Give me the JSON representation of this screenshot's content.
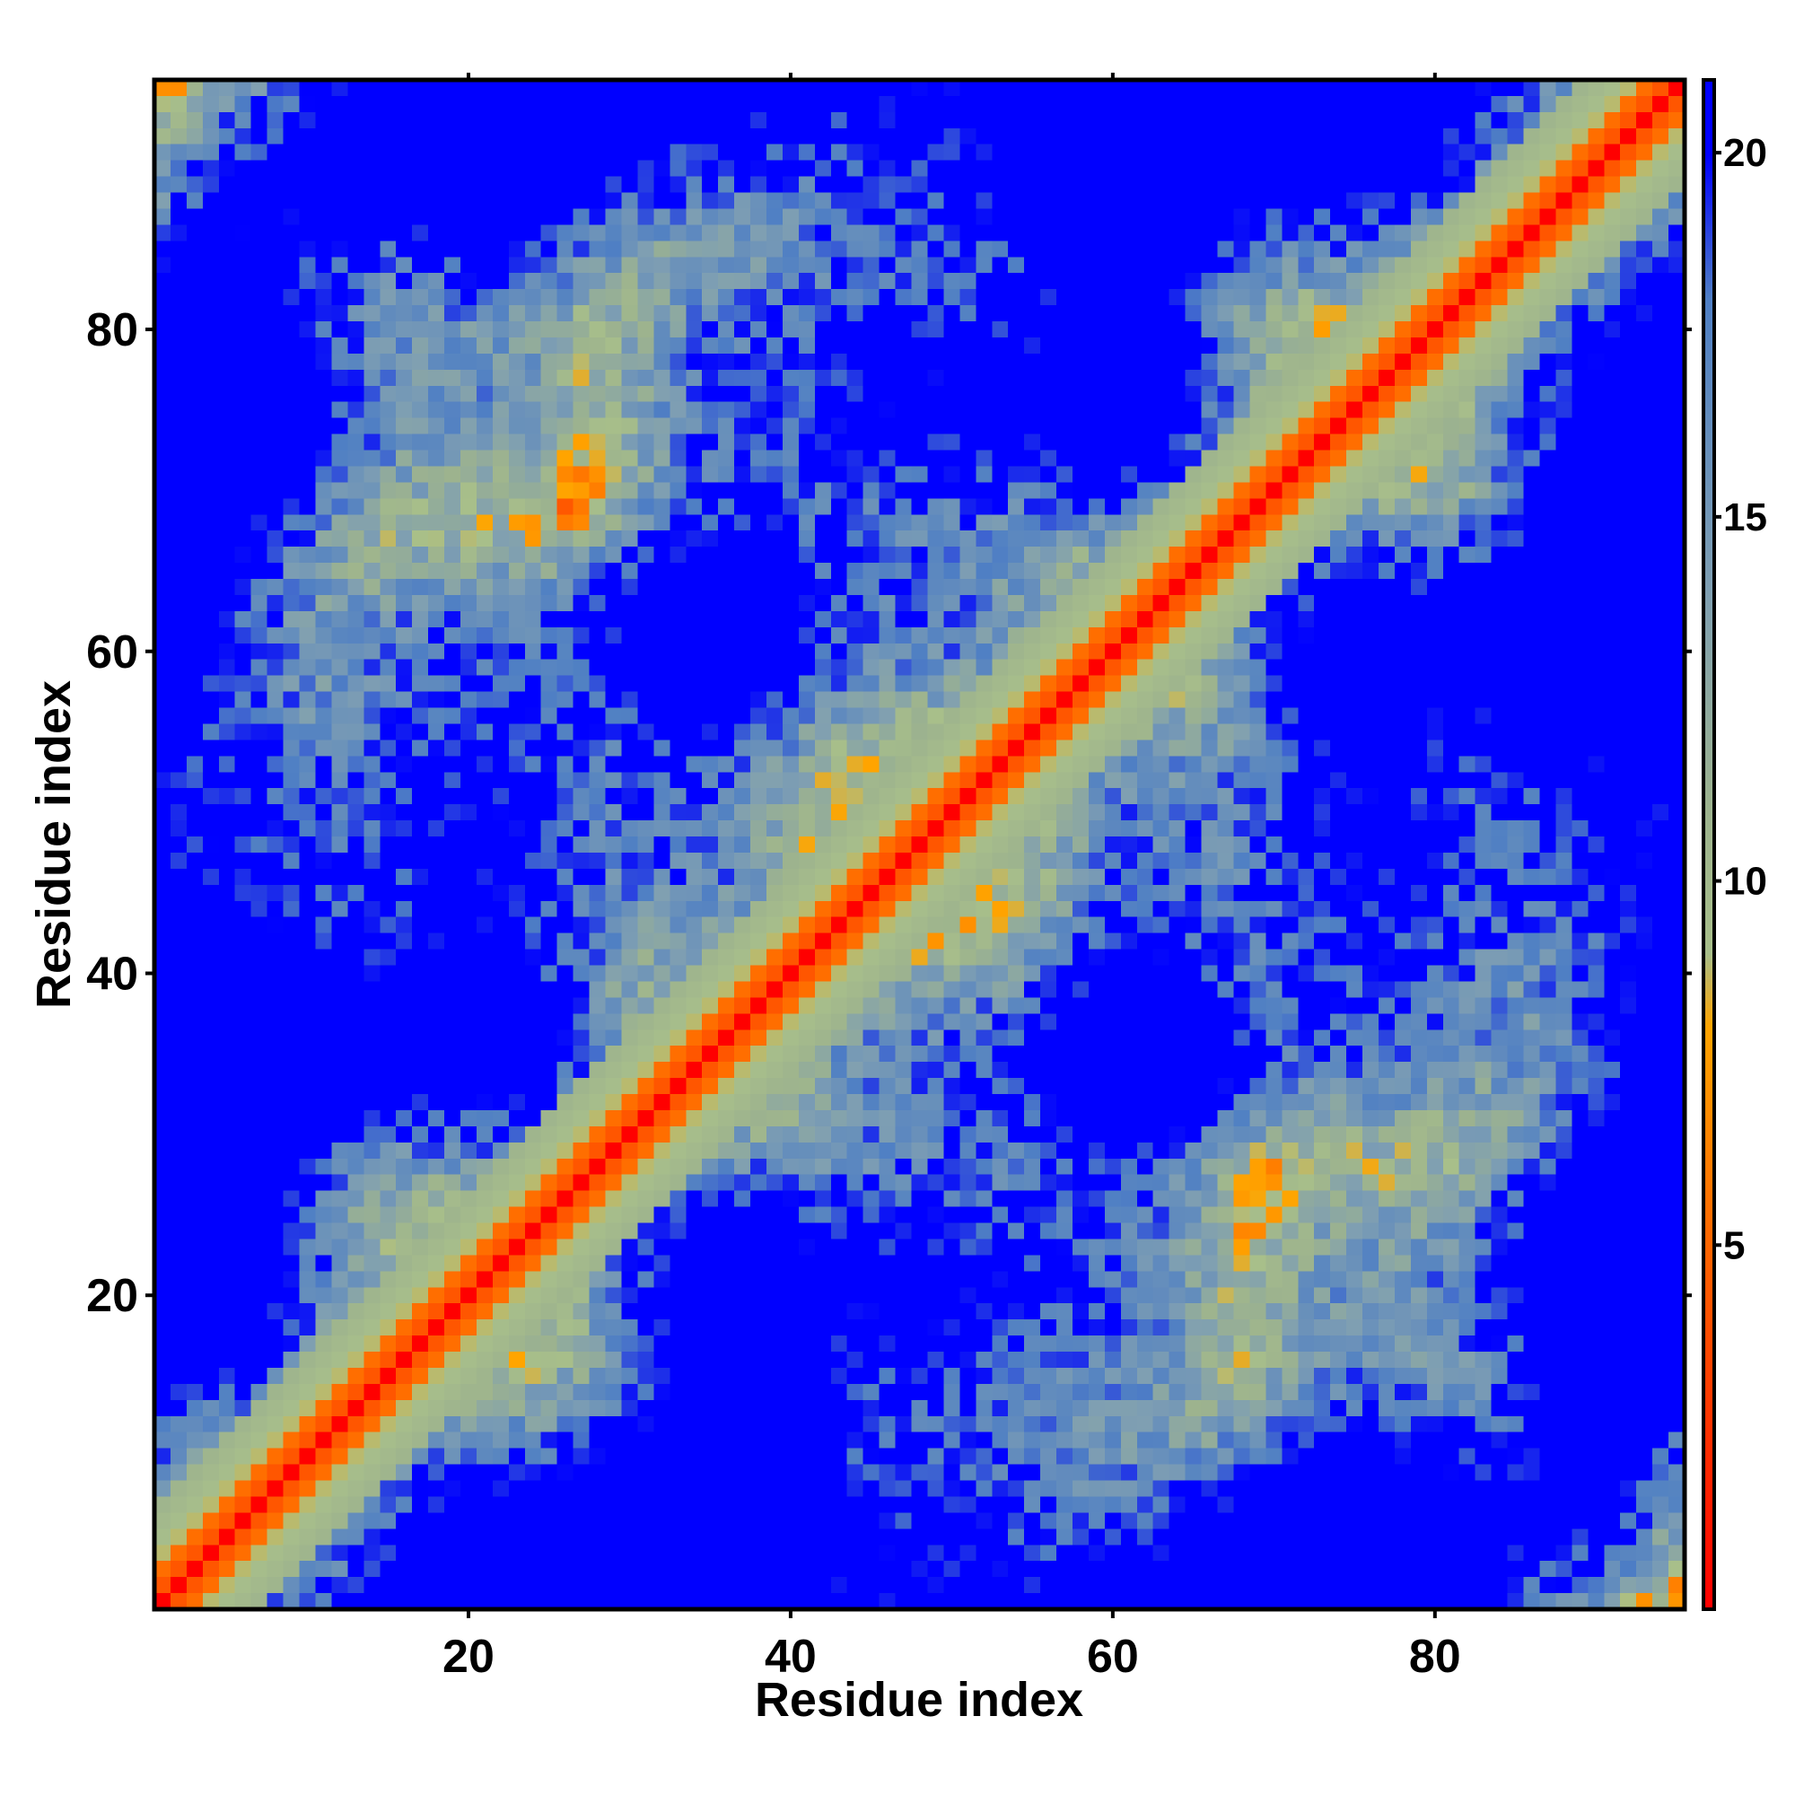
{
  "chart_data": {
    "type": "heatmap",
    "xlabel": "Residue index",
    "ylabel": "Residue index",
    "n_residues": 95,
    "x_range": [
      1,
      95
    ],
    "y_range": [
      1,
      95
    ],
    "x_ticks": [
      "20",
      "40",
      "60",
      "80"
    ],
    "x_tick_values": [
      20,
      40,
      60,
      80
    ],
    "y_ticks": [
      "20",
      "40",
      "60",
      "80"
    ],
    "y_tick_values": [
      20,
      40,
      60,
      80
    ],
    "colorbar": {
      "ticks": [
        "5",
        "10",
        "15",
        "20"
      ],
      "tick_values": [
        5,
        10,
        15,
        20
      ],
      "range": [
        0,
        21
      ]
    },
    "colorscale": [
      {
        "value": 0,
        "color": "#ff0000"
      },
      {
        "value": 5,
        "color": "#ff6600"
      },
      {
        "value": 8,
        "color": "#ffa500"
      },
      {
        "value": 9,
        "color": "#a8bf8a"
      },
      {
        "value": 11,
        "color": "#9db38e"
      },
      {
        "value": 14,
        "color": "#7f9fb2"
      },
      {
        "value": 18,
        "color": "#4f7fc4"
      },
      {
        "value": 20,
        "color": "#0000ff"
      }
    ],
    "grid": false,
    "description_of_values": "Pairwise residue distance map; diagonal near 0 (red), distant pairs saturate at ~21 (blue)."
  }
}
